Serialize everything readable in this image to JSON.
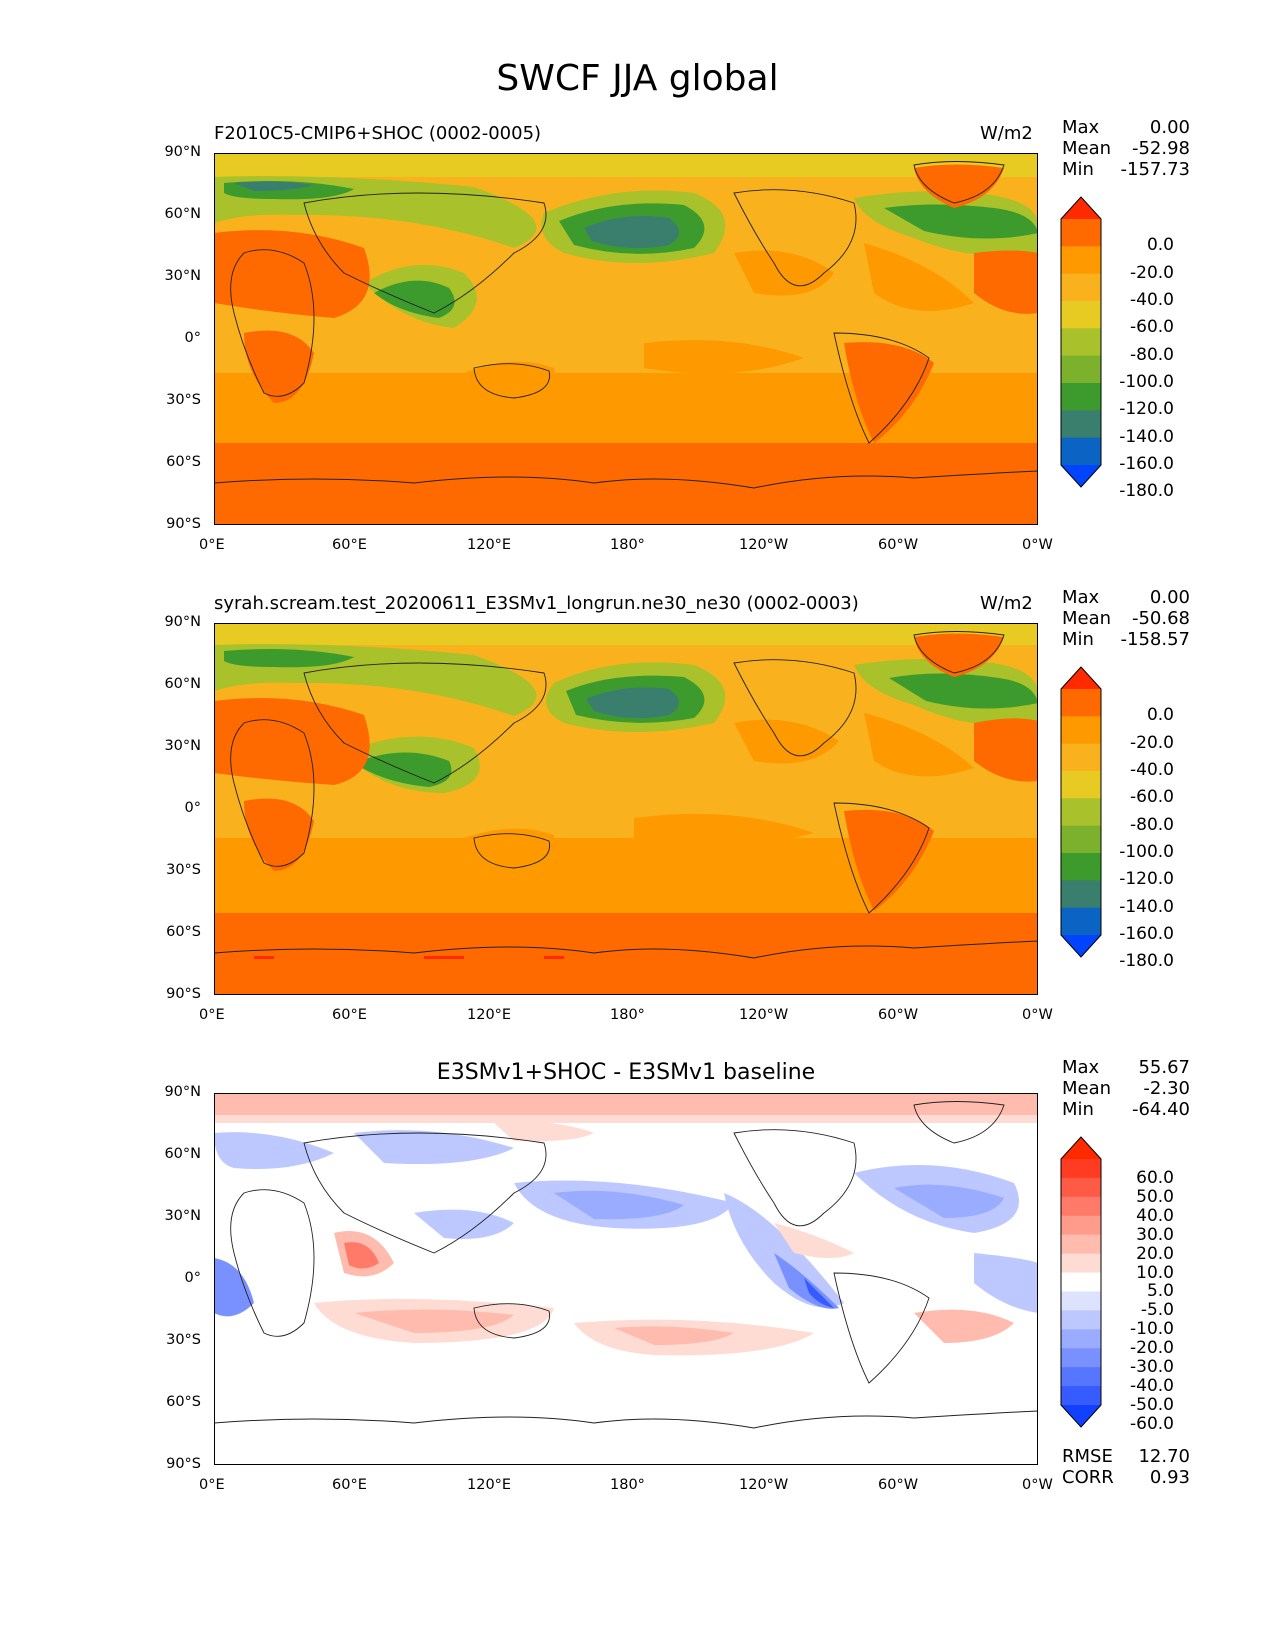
{
  "figure_title": "SWCF JJA global",
  "x_ticks": [
    "0°E",
    "60°E",
    "120°E",
    "180°",
    "120°W",
    "60°W",
    "0°W"
  ],
  "y_ticks": [
    "90°N",
    "60°N",
    "30°N",
    "0°",
    "30°S",
    "60°S",
    "90°S"
  ],
  "panels": [
    {
      "title": "F2010C5-CMIP6+SHOC (0002-0005)",
      "units": "W/m2",
      "stats": {
        "max_label": "Max",
        "max": "0.00",
        "mean_label": "Mean",
        "mean": "-52.98",
        "min_label": "Min",
        "min": "-157.73"
      },
      "colorbar": {
        "labels": [
          "0.0",
          "-20.0",
          "-40.0",
          "-60.0",
          "-80.0",
          "-100.0",
          "-120.0",
          "-140.0",
          "-160.0",
          "-180.0"
        ],
        "colors": [
          "#ff2a00",
          "#ff6a00",
          "#ff9900",
          "#f9b21e",
          "#e7cb23",
          "#a9c12a",
          "#7bb12c",
          "#3d9b2d",
          "#3a7f6e",
          "#0b63c4",
          "#0044ff"
        ]
      }
    },
    {
      "title": "syrah.scream.test_20200611_E3SMv1_longrun.ne30_ne30 (0002-0003)",
      "units": "W/m2",
      "stats": {
        "max_label": "Max",
        "max": "0.00",
        "mean_label": "Mean",
        "mean": "-50.68",
        "min_label": "Min",
        "min": "-158.57"
      },
      "colorbar": {
        "labels": [
          "0.0",
          "-20.0",
          "-40.0",
          "-60.0",
          "-80.0",
          "-100.0",
          "-120.0",
          "-140.0",
          "-160.0",
          "-180.0"
        ],
        "colors": [
          "#ff2a00",
          "#ff6a00",
          "#ff9900",
          "#f9b21e",
          "#e7cb23",
          "#a9c12a",
          "#7bb12c",
          "#3d9b2d",
          "#3a7f6e",
          "#0b63c4",
          "#0044ff"
        ]
      }
    },
    {
      "title": "E3SMv1+SHOC - E3SMv1 baseline",
      "units": "",
      "stats": {
        "max_label": "Max",
        "max": "55.67",
        "mean_label": "Mean",
        "mean": "-2.30",
        "min_label": "Min",
        "min": "-64.40"
      },
      "colorbar": {
        "labels": [
          "60.0",
          "50.0",
          "40.0",
          "30.0",
          "20.0",
          "10.0",
          "5.0",
          "-5.0",
          "-10.0",
          "-20.0",
          "-30.0",
          "-40.0",
          "-50.0",
          "-60.0"
        ],
        "colors": [
          "#ff2a00",
          "#ff3b22",
          "#ff5a46",
          "#ff7a68",
          "#ff9b8b",
          "#ffbcae",
          "#ffdcd3",
          "#ffffff",
          "#dde3ff",
          "#bcc8ff",
          "#9aacff",
          "#7991ff",
          "#5776ff",
          "#365bff",
          "#1240ff"
        ]
      },
      "metrics": {
        "rmse_label": "RMSE",
        "rmse": "12.70",
        "corr_label": "CORR",
        "corr": "0.93"
      }
    }
  ],
  "chart_data": {
    "type": "heatmap",
    "title": "SWCF JJA global",
    "variable": "SWCF",
    "season": "JJA",
    "units": "W/m2",
    "xlim": [
      0,
      360
    ],
    "ylim": [
      -90,
      90
    ],
    "series": [
      {
        "name": "F2010C5-CMIP6+SHOC (0002-0005)",
        "max": 0.0,
        "mean": -52.98,
        "min": -157.73,
        "levels": [
          -180,
          -160,
          -140,
          -120,
          -100,
          -80,
          -60,
          -40,
          -20,
          0
        ]
      },
      {
        "name": "syrah.scream.test_20200611_E3SMv1_longrun.ne30_ne30 (0002-0003)",
        "max": 0.0,
        "mean": -50.68,
        "min": -158.57,
        "levels": [
          -180,
          -160,
          -140,
          -120,
          -100,
          -80,
          -60,
          -40,
          -20,
          0
        ]
      },
      {
        "name": "E3SMv1+SHOC - E3SMv1 baseline",
        "max": 55.67,
        "mean": -2.3,
        "min": -64.4,
        "rmse": 12.7,
        "corr": 0.93,
        "levels": [
          -60,
          -50,
          -40,
          -30,
          -20,
          -10,
          -5,
          5,
          10,
          20,
          30,
          40,
          50,
          60
        ]
      }
    ]
  }
}
